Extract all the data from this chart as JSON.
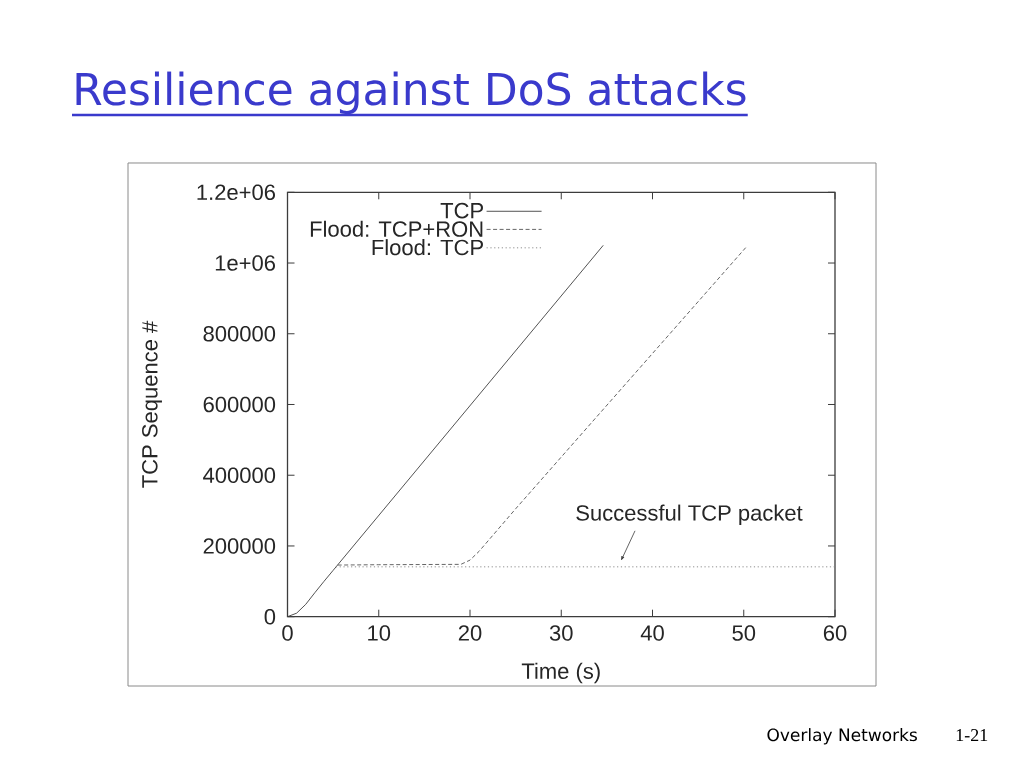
{
  "chart_data": {
    "type": "line",
    "title": "Resilience against DoS attacks",
    "xlabel": "Time (s)",
    "ylabel": "TCP Sequence #",
    "xlim": [
      0,
      60
    ],
    "ylim": [
      0,
      1200000
    ],
    "xticks": [
      0,
      10,
      20,
      30,
      40,
      50,
      60
    ],
    "yticks": [
      0,
      200000,
      400000,
      600000,
      800000,
      {
        "value": 1000000,
        "label": "1e+06"
      },
      {
        "value": 1200000,
        "label": "1.2e+06"
      }
    ],
    "legend": "top left",
    "marker": "none",
    "series": [
      {
        "name": "TCP",
        "color": "#404040",
        "line_style": "solid",
        "x": [
          0,
          1,
          2,
          3,
          4,
          5,
          34.6
        ],
        "values": [
          0,
          10000,
          35000,
          68000,
          100000,
          131000,
          1050000
        ]
      },
      {
        "name": "Flood: TCP+RON",
        "color": "#555555",
        "line_style": "dashed",
        "x": [
          5.5,
          10,
          19,
          20,
          21,
          22,
          23,
          24,
          25,
          50.3
        ],
        "values": [
          146000,
          147000,
          148000,
          160000,
          185000,
          215000,
          245000,
          275000,
          305000,
          1046000
        ]
      },
      {
        "name": "Flood: TCP",
        "color": "#808080",
        "line_style": "dotted",
        "x": [
          5.3,
          60
        ],
        "values": [
          141000,
          141000
        ]
      }
    ],
    "annotations": [
      {
        "text": "Successful TCP packet",
        "x": 36,
        "y": 141000
      },
      "Overlay Networks",
      "1-21"
    ]
  }
}
